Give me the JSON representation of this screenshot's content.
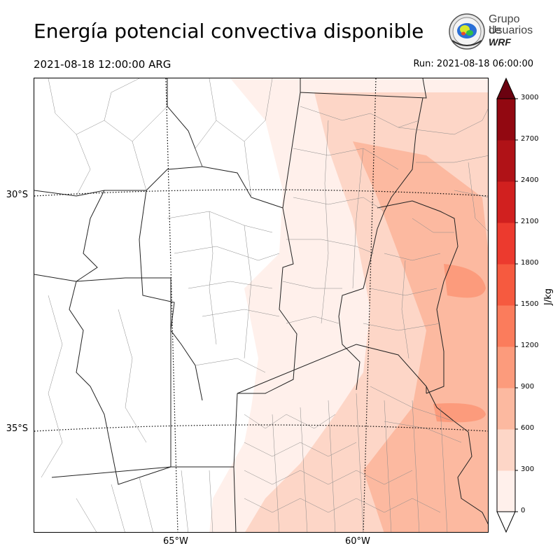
{
  "header": {
    "title": "Energía potencial convectiva disponible",
    "valid_time": "2021-08-18 12:00:00 ARG",
    "run_time": "Run: 2021-08-18 06:00:00"
  },
  "logo": {
    "line1": "Grupo de",
    "line2": "Usuarios",
    "line3": "WRF"
  },
  "map": {
    "lat_labels": [
      "30°S",
      "35°S"
    ],
    "lon_labels": [
      "65°W",
      "60°W"
    ]
  },
  "colorbar": {
    "unit": "J/kg",
    "ticks": [
      "0",
      "300",
      "600",
      "900",
      "1200",
      "1500",
      "1800",
      "2100",
      "2400",
      "2700",
      "3000"
    ],
    "colors": [
      "#fff0eb",
      "#fdd6c7",
      "#fcb9a0",
      "#fc9b7c",
      "#fb7c5c",
      "#f65a3f",
      "#ec3a2e",
      "#d1201f",
      "#b01217",
      "#920811",
      "#6b0210"
    ]
  }
}
